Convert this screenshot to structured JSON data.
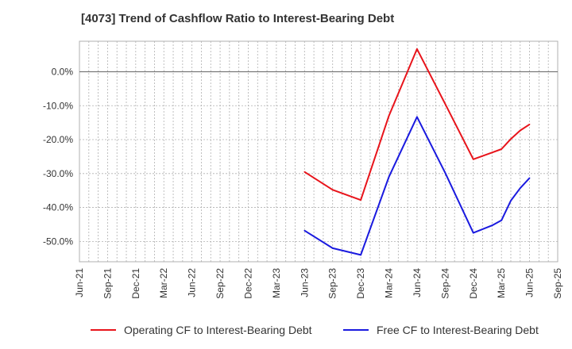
{
  "title": "[4073]  Trend of Cashflow Ratio to Interest-Bearing Debt",
  "colors": {
    "operating": "#e8141b",
    "free": "#1a1adf",
    "grid": "#b0b0b0",
    "axis": "#333333"
  },
  "chart_data": {
    "type": "line",
    "title": "[4073]  Trend of Cashflow Ratio to Interest-Bearing Debt",
    "xlabel": "",
    "ylabel": "",
    "x_ticks": [
      "Jun-21",
      "Sep-21",
      "Dec-21",
      "Mar-22",
      "Jun-22",
      "Sep-22",
      "Dec-22",
      "Mar-23",
      "Jun-23",
      "Sep-23",
      "Dec-23",
      "Mar-24",
      "Jun-24",
      "Sep-24",
      "Dec-24",
      "Mar-25",
      "Jun-25",
      "Sep-25"
    ],
    "y_ticks": [
      0,
      -10,
      -20,
      -30,
      -40,
      -50
    ],
    "y_tick_labels": [
      "0.0%",
      "-10.0%",
      "-20.0%",
      "-30.0%",
      "-40.0%",
      "-50.0%"
    ],
    "ylim": [
      -56,
      9
    ],
    "grid": true,
    "legend_position": "bottom",
    "series": [
      {
        "name": "Operating CF to Interest-Bearing Debt",
        "color": "#e8141b",
        "points": [
          [
            "Jun-23",
            -29.5
          ],
          [
            "Sep-23",
            -34.8
          ],
          [
            "Dec-23",
            -37.8
          ],
          [
            "Mar-24",
            -13.0
          ],
          [
            "Jun-24",
            6.7
          ],
          [
            "Sep-24",
            -9.5
          ],
          [
            "Dec-24",
            -25.8
          ],
          [
            "Feb-25",
            -23.8
          ],
          [
            "Mar-25",
            -22.8
          ],
          [
            "Apr-25",
            -19.8
          ],
          [
            "May-25",
            -17.3
          ],
          [
            "Jun-25",
            -15.5
          ]
        ]
      },
      {
        "name": "Free CF to Interest-Bearing Debt",
        "color": "#1a1adf",
        "points": [
          [
            "Jun-23",
            -46.8
          ],
          [
            "Sep-23",
            -52.0
          ],
          [
            "Dec-23",
            -54.0
          ],
          [
            "Mar-24",
            -31.0
          ],
          [
            "Jun-24",
            -13.3
          ],
          [
            "Sep-24",
            -29.8
          ],
          [
            "Dec-24",
            -47.5
          ],
          [
            "Feb-25",
            -45.3
          ],
          [
            "Mar-25",
            -43.8
          ],
          [
            "Apr-25",
            -38.0
          ],
          [
            "May-25",
            -34.3
          ],
          [
            "Jun-25",
            -31.3
          ]
        ]
      }
    ]
  }
}
